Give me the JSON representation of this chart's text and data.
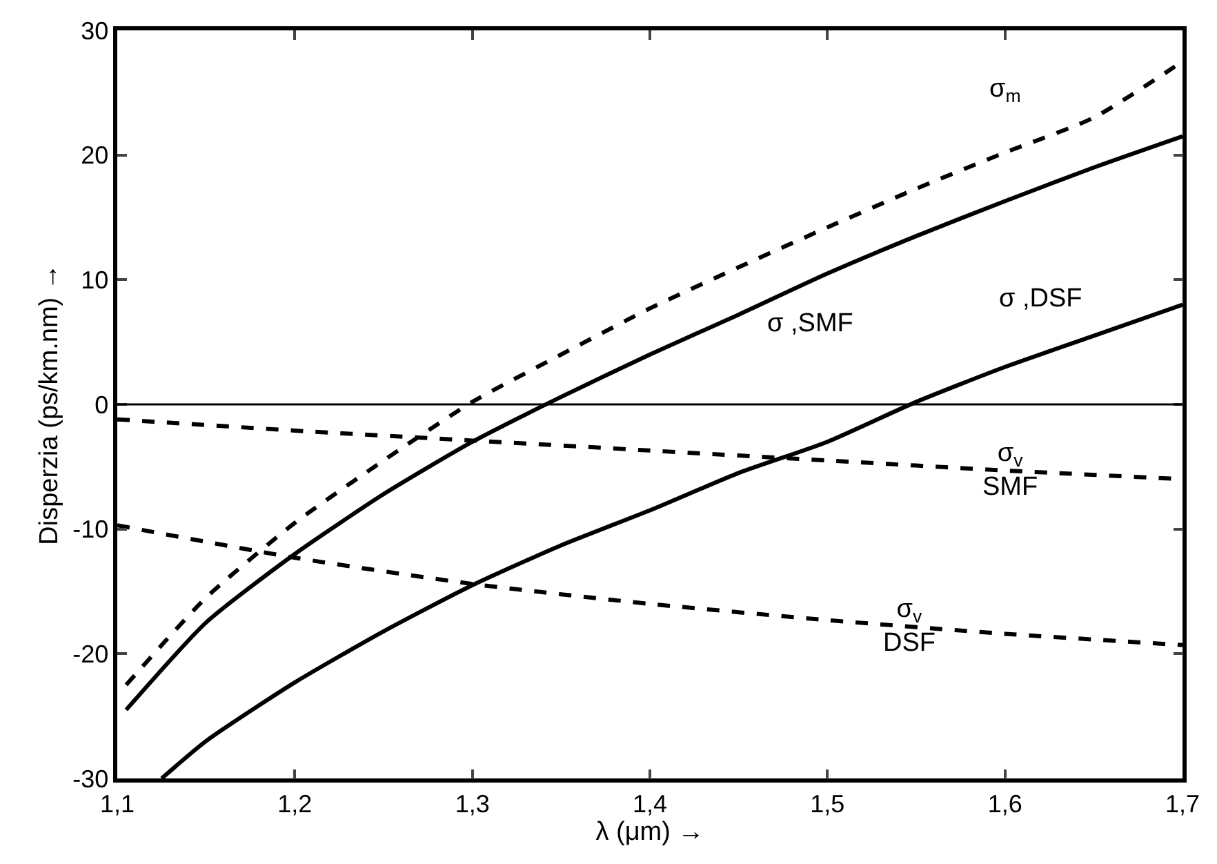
{
  "chart_data": {
    "type": "line",
    "xlabel": "λ (μm) →",
    "ylabel": "Disperzia (ps/km.nm) →",
    "xlim": [
      1.1,
      1.7
    ],
    "ylim": [
      -30,
      30
    ],
    "xticks": [
      {
        "value": 1.1,
        "label": "1,1"
      },
      {
        "value": 1.2,
        "label": "1,2"
      },
      {
        "value": 1.3,
        "label": "1,3"
      },
      {
        "value": 1.4,
        "label": "1,4"
      },
      {
        "value": 1.5,
        "label": "1,5"
      },
      {
        "value": 1.6,
        "label": "1,6"
      },
      {
        "value": 1.7,
        "label": "1,7"
      }
    ],
    "yticks": [
      -30,
      -20,
      -10,
      0,
      10,
      20,
      30
    ],
    "legend": false,
    "marker": "none",
    "series": [
      {
        "name": "σ$_{m}$",
        "color": "#000000",
        "line_style": "dashed",
        "x": [
          1.105,
          1.15,
          1.2,
          1.25,
          1.3,
          1.35,
          1.4,
          1.45,
          1.5,
          1.55,
          1.6,
          1.65,
          1.7
        ],
        "values": [
          -22.5,
          -15.5,
          -9.5,
          -4.5,
          0.2,
          4,
          7.7,
          11,
          14.2,
          17.3,
          20.2,
          23,
          27.5
        ]
      },
      {
        "name": "σ ,SMF",
        "color": "#000000",
        "line_style": "solid",
        "x": [
          1.105,
          1.15,
          1.2,
          1.25,
          1.3,
          1.35,
          1.4,
          1.45,
          1.5,
          1.55,
          1.6,
          1.65,
          1.7
        ],
        "values": [
          -24.5,
          -17.5,
          -12,
          -7.2,
          -3,
          0.6,
          4,
          7.2,
          10.5,
          13.5,
          16.3,
          19,
          21.5
        ]
      },
      {
        "name": "σ ,DSF",
        "color": "#000000",
        "line_style": "solid",
        "x": [
          1.125,
          1.15,
          1.2,
          1.25,
          1.3,
          1.35,
          1.4,
          1.45,
          1.5,
          1.55,
          1.6,
          1.65,
          1.7
        ],
        "values": [
          -30,
          -27,
          -22.3,
          -18.2,
          -14.5,
          -11.3,
          -8.5,
          -5.5,
          -3,
          0.2,
          3,
          5.5,
          8
        ]
      },
      {
        "name": "σ$_{v}$\nSMF",
        "color": "#000000",
        "line_style": "dashed",
        "x": [
          1.1,
          1.2,
          1.3,
          1.4,
          1.5,
          1.6,
          1.7
        ],
        "values": [
          -1.2,
          -2.1,
          -2.9,
          -3.7,
          -4.5,
          -5.3,
          -6
        ]
      },
      {
        "name": "σ$_{v}$\nDSF",
        "color": "#000000",
        "line_style": "dashed",
        "x": [
          1.1,
          1.2,
          1.3,
          1.4,
          1.5,
          1.6,
          1.7
        ],
        "values": [
          -9.7,
          -12.3,
          -14.4,
          -16,
          -17.3,
          -18.4,
          -19.3
        ]
      }
    ],
    "ref_lines": [
      {
        "axis": "y",
        "value": 0,
        "color": "#000000",
        "line_style": "solid"
      }
    ]
  }
}
